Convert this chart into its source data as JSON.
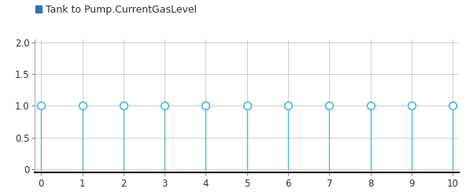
{
  "title": "Tank to Pump.CurrentGasLevel",
  "legend_marker_color": "#2E75B6",
  "line_color": "#4DB8D9",
  "marker_color": "#4DB8D9",
  "background_color": "#FFFFFF",
  "plot_bg_color": "#FFFFFF",
  "grid_color": "#C8C8C8",
  "x_data": [
    0,
    1,
    2,
    3,
    4,
    5,
    6,
    7,
    8,
    9,
    10
  ],
  "y_data": [
    1,
    1,
    1,
    1,
    1,
    1,
    1,
    1,
    1,
    1,
    1
  ],
  "xlim": [
    -0.15,
    10.15
  ],
  "ylim": [
    -0.05,
    2.05
  ],
  "yticks": [
    0,
    0.5,
    1.0,
    1.5,
    2.0
  ],
  "ytick_labels": [
    "0",
    "0.5",
    "1.0",
    "1.5",
    "2.0"
  ],
  "xticks": [
    0,
    1,
    2,
    3,
    4,
    5,
    6,
    7,
    8,
    9,
    10
  ],
  "marker_size": 7,
  "line_width": 1.0,
  "tick_fontsize": 8.5,
  "legend_fontsize": 9,
  "spine_color": "#444444",
  "bottom_spine_color": "#111111",
  "bottom_spine_width": 1.5
}
